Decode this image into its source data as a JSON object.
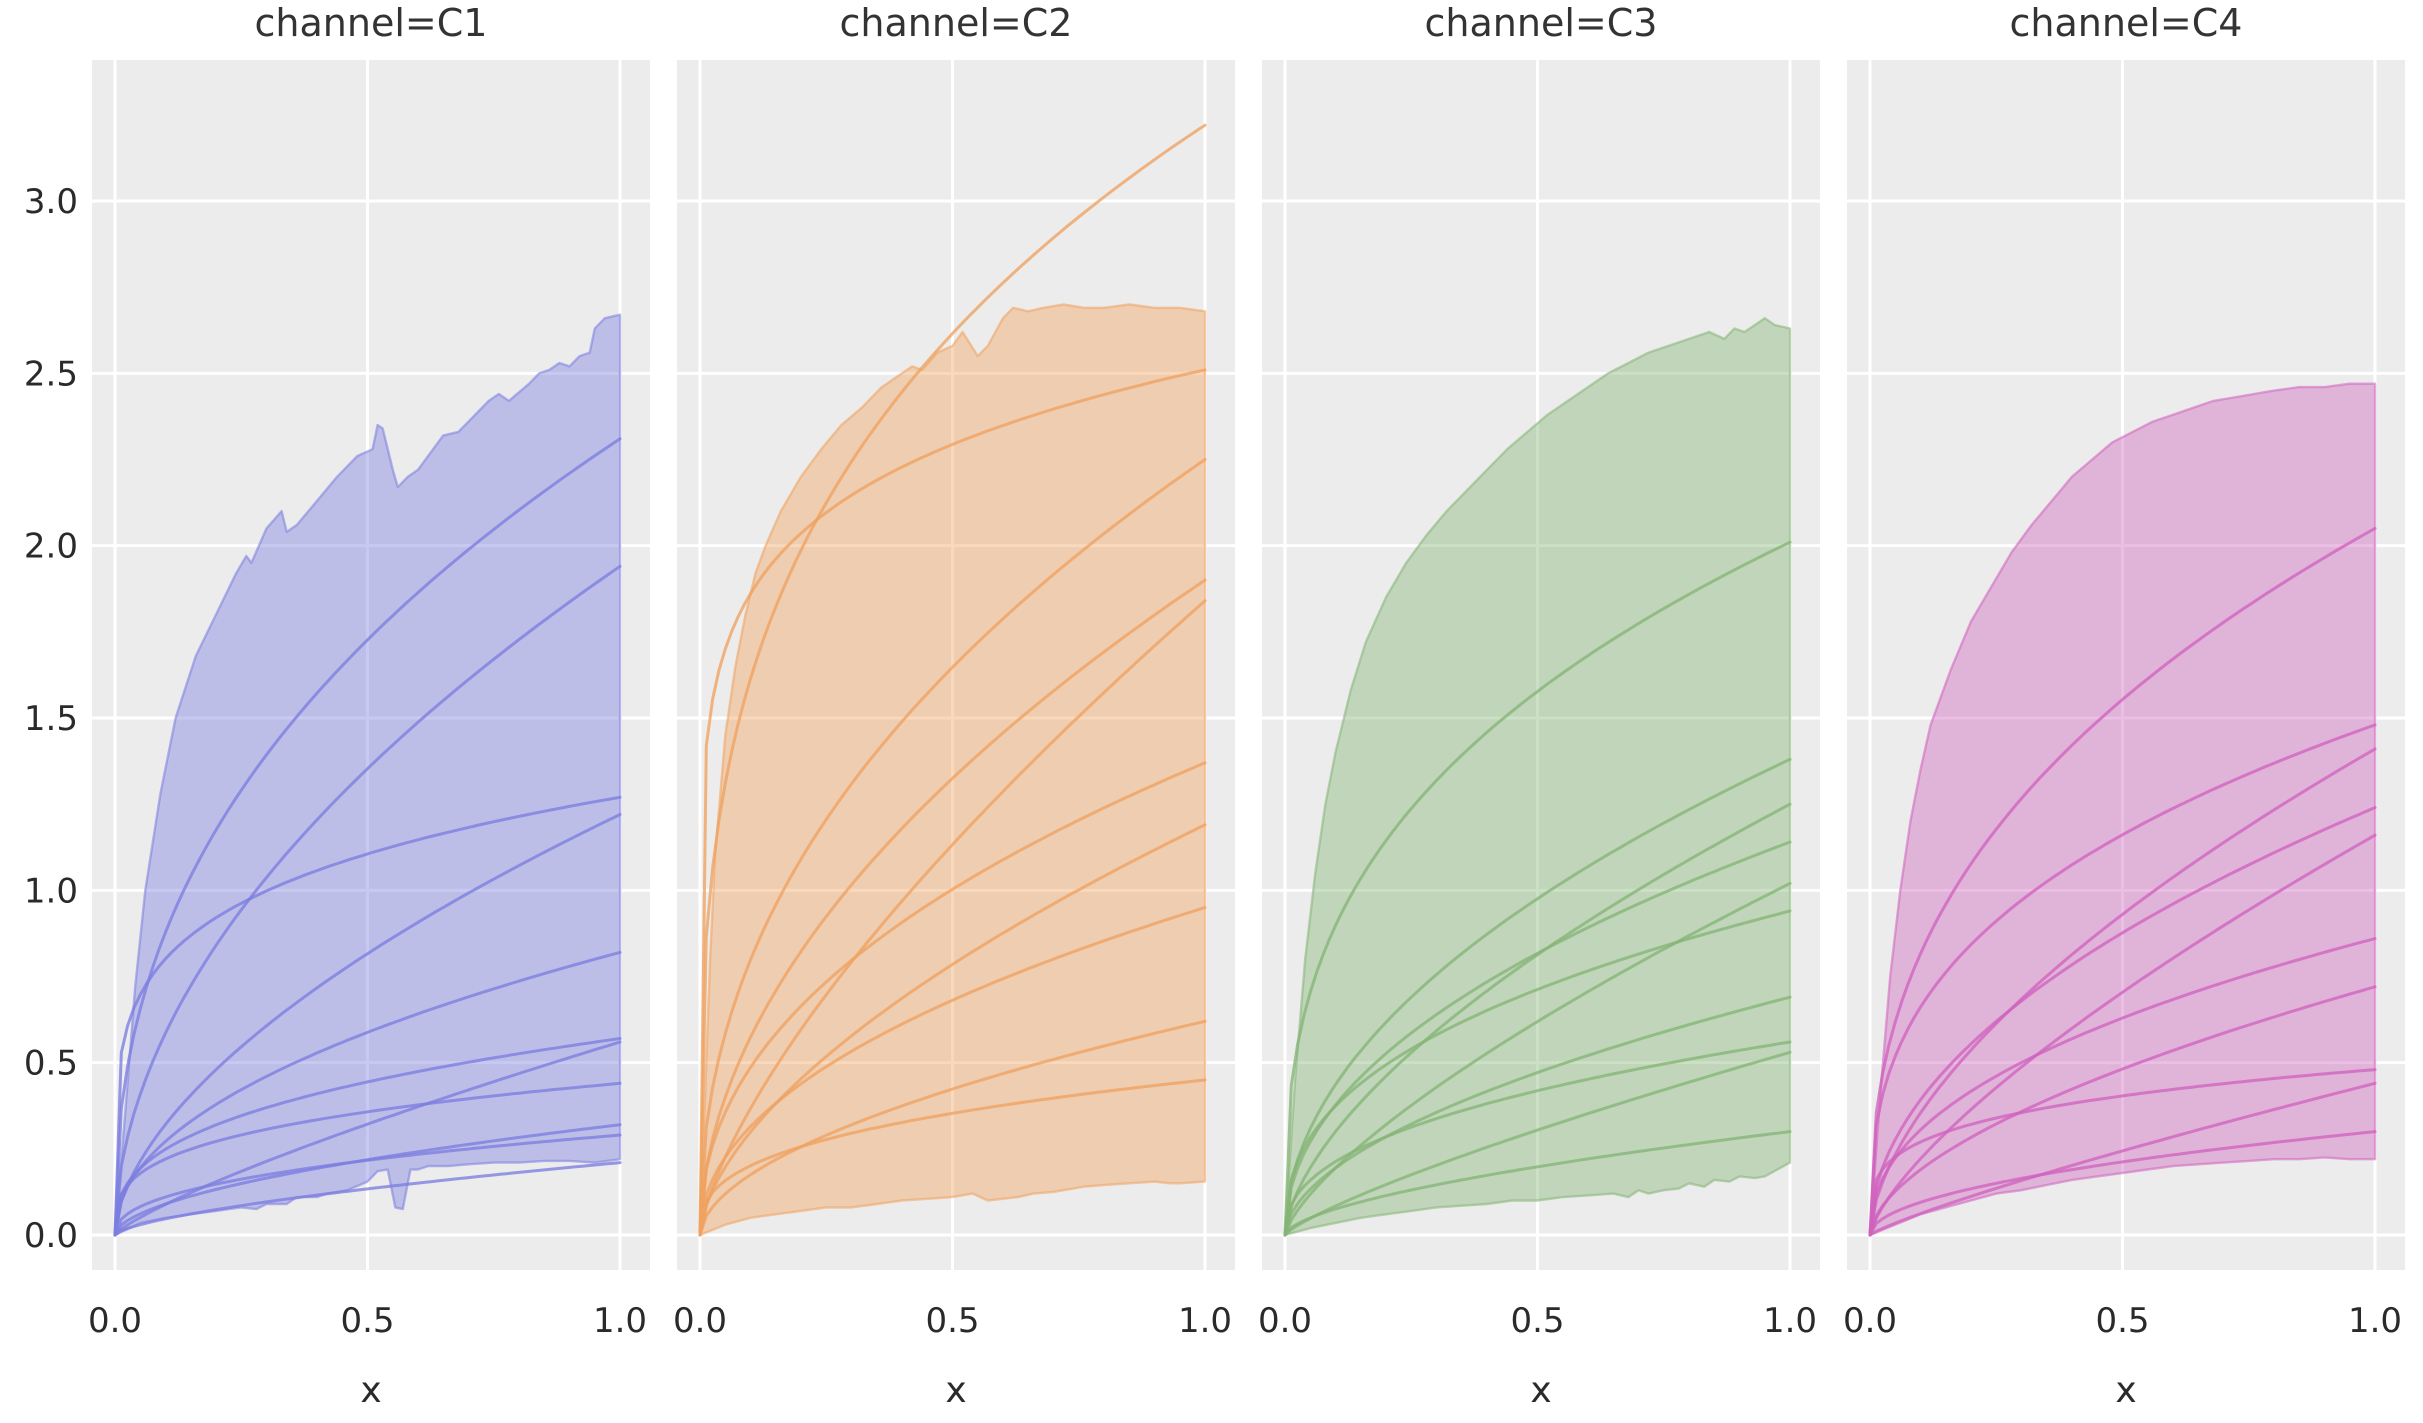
{
  "figure": {
    "background": "#ffffff",
    "axes_background": "#ececec",
    "grid_color": "#ffffff",
    "tick_color": "#2a2a2a",
    "title_color": "#333333",
    "x_axis_label": "x",
    "x_ticks": [
      "0.0",
      "0.5",
      "1.0"
    ],
    "x_tick_values": [
      0.0,
      0.5,
      1.0
    ],
    "y_ticks": [
      "0.0",
      "0.5",
      "1.0",
      "1.5",
      "2.0",
      "2.5",
      "3.0"
    ],
    "y_tick_values": [
      0.0,
      0.5,
      1.0,
      1.5,
      2.0,
      2.5,
      3.0
    ]
  },
  "chart_data": [
    {
      "type": "area",
      "title": "channel=C1",
      "xlabel": "x",
      "line_color": "#7b7ee0",
      "xlim": [
        -0.045,
        1.06
      ],
      "ylim": [
        -0.1,
        3.41
      ],
      "curve_model": "y = y_end * x^shape",
      "curves": [
        {
          "y_end": 2.31,
          "shape": 0.42
        },
        {
          "y_end": 1.94,
          "shape": 0.52
        },
        {
          "y_end": 1.27,
          "shape": 0.2
        },
        {
          "y_end": 1.22,
          "shape": 0.58
        },
        {
          "y_end": 0.82,
          "shape": 0.48
        },
        {
          "y_end": 0.57,
          "shape": 0.36
        },
        {
          "y_end": 0.56,
          "shape": 0.8
        },
        {
          "y_end": 0.44,
          "shape": 0.3
        },
        {
          "y_end": 0.32,
          "shape": 0.55
        },
        {
          "y_end": 0.29,
          "shape": 0.42
        },
        {
          "y_end": 0.21,
          "shape": 0.65
        }
      ],
      "band": {
        "top": [
          [
            0,
            0
          ],
          [
            0.02,
            0.35
          ],
          [
            0.04,
            0.72
          ],
          [
            0.06,
            1.0
          ],
          [
            0.09,
            1.28
          ],
          [
            0.12,
            1.5
          ],
          [
            0.16,
            1.68
          ],
          [
            0.2,
            1.8
          ],
          [
            0.24,
            1.92
          ],
          [
            0.26,
            1.97
          ],
          [
            0.27,
            1.95
          ],
          [
            0.3,
            2.05
          ],
          [
            0.33,
            2.1
          ],
          [
            0.34,
            2.04
          ],
          [
            0.36,
            2.06
          ],
          [
            0.4,
            2.13
          ],
          [
            0.44,
            2.2
          ],
          [
            0.48,
            2.26
          ],
          [
            0.51,
            2.28
          ],
          [
            0.52,
            2.35
          ],
          [
            0.53,
            2.34
          ],
          [
            0.55,
            2.22
          ],
          [
            0.56,
            2.17
          ],
          [
            0.58,
            2.2
          ],
          [
            0.6,
            2.22
          ],
          [
            0.63,
            2.28
          ],
          [
            0.65,
            2.32
          ],
          [
            0.68,
            2.33
          ],
          [
            0.7,
            2.36
          ],
          [
            0.74,
            2.42
          ],
          [
            0.76,
            2.44
          ],
          [
            0.78,
            2.42
          ],
          [
            0.82,
            2.47
          ],
          [
            0.84,
            2.5
          ],
          [
            0.86,
            2.51
          ],
          [
            0.88,
            2.53
          ],
          [
            0.9,
            2.52
          ],
          [
            0.92,
            2.55
          ],
          [
            0.94,
            2.56
          ],
          [
            0.95,
            2.63
          ],
          [
            0.97,
            2.66
          ],
          [
            1.0,
            2.67
          ]
        ],
        "bottom": [
          [
            0,
            0
          ],
          [
            0.05,
            0.035
          ],
          [
            0.1,
            0.05
          ],
          [
            0.15,
            0.06
          ],
          [
            0.2,
            0.07
          ],
          [
            0.25,
            0.08
          ],
          [
            0.28,
            0.075
          ],
          [
            0.3,
            0.09
          ],
          [
            0.34,
            0.09
          ],
          [
            0.36,
            0.11
          ],
          [
            0.4,
            0.11
          ],
          [
            0.42,
            0.12
          ],
          [
            0.44,
            0.125
          ],
          [
            0.46,
            0.13
          ],
          [
            0.5,
            0.155
          ],
          [
            0.52,
            0.185
          ],
          [
            0.54,
            0.19
          ],
          [
            0.555,
            0.08
          ],
          [
            0.57,
            0.075
          ],
          [
            0.585,
            0.19
          ],
          [
            0.6,
            0.19
          ],
          [
            0.62,
            0.2
          ],
          [
            0.66,
            0.2
          ],
          [
            0.7,
            0.205
          ],
          [
            0.75,
            0.21
          ],
          [
            0.8,
            0.21
          ],
          [
            0.85,
            0.215
          ],
          [
            0.9,
            0.215
          ],
          [
            0.95,
            0.21
          ],
          [
            1.0,
            0.22
          ]
        ]
      }
    },
    {
      "type": "area",
      "title": "channel=C2",
      "xlabel": "x",
      "line_color": "#f0a25f",
      "xlim": [
        -0.045,
        1.06
      ],
      "ylim": [
        -0.1,
        3.41
      ],
      "curve_model": "y = y_end * x^shape",
      "curves": [
        {
          "y_end": 3.22,
          "shape": 0.3
        },
        {
          "y_end": 2.51,
          "shape": 0.13
        },
        {
          "y_end": 2.25,
          "shape": 0.45
        },
        {
          "y_end": 1.9,
          "shape": 0.52
        },
        {
          "y_end": 1.84,
          "shape": 0.7
        },
        {
          "y_end": 1.37,
          "shape": 0.45
        },
        {
          "y_end": 1.19,
          "shape": 0.6
        },
        {
          "y_end": 0.95,
          "shape": 0.48
        },
        {
          "y_end": 0.62,
          "shape": 0.55
        },
        {
          "y_end": 0.45,
          "shape": 0.35
        }
      ],
      "band": {
        "top": [
          [
            0,
            0
          ],
          [
            0.01,
            0.4
          ],
          [
            0.02,
            0.8
          ],
          [
            0.03,
            1.1
          ],
          [
            0.05,
            1.45
          ],
          [
            0.07,
            1.65
          ],
          [
            0.09,
            1.8
          ],
          [
            0.11,
            1.92
          ],
          [
            0.13,
            2.0
          ],
          [
            0.16,
            2.1
          ],
          [
            0.2,
            2.2
          ],
          [
            0.24,
            2.28
          ],
          [
            0.28,
            2.35
          ],
          [
            0.32,
            2.4
          ],
          [
            0.36,
            2.46
          ],
          [
            0.4,
            2.5
          ],
          [
            0.42,
            2.52
          ],
          [
            0.44,
            2.51
          ],
          [
            0.47,
            2.56
          ],
          [
            0.5,
            2.58
          ],
          [
            0.52,
            2.62
          ],
          [
            0.55,
            2.55
          ],
          [
            0.57,
            2.58
          ],
          [
            0.6,
            2.66
          ],
          [
            0.62,
            2.69
          ],
          [
            0.65,
            2.68
          ],
          [
            0.68,
            2.69
          ],
          [
            0.72,
            2.7
          ],
          [
            0.76,
            2.69
          ],
          [
            0.8,
            2.69
          ],
          [
            0.85,
            2.7
          ],
          [
            0.9,
            2.69
          ],
          [
            0.95,
            2.69
          ],
          [
            1.0,
            2.68
          ]
        ],
        "bottom": [
          [
            0,
            0
          ],
          [
            0.05,
            0.03
          ],
          [
            0.1,
            0.05
          ],
          [
            0.15,
            0.06
          ],
          [
            0.2,
            0.07
          ],
          [
            0.25,
            0.08
          ],
          [
            0.3,
            0.08
          ],
          [
            0.35,
            0.09
          ],
          [
            0.4,
            0.1
          ],
          [
            0.45,
            0.105
          ],
          [
            0.5,
            0.11
          ],
          [
            0.54,
            0.12
          ],
          [
            0.57,
            0.1
          ],
          [
            0.6,
            0.105
          ],
          [
            0.63,
            0.11
          ],
          [
            0.66,
            0.12
          ],
          [
            0.7,
            0.125
          ],
          [
            0.72,
            0.13
          ],
          [
            0.74,
            0.135
          ],
          [
            0.76,
            0.14
          ],
          [
            0.8,
            0.145
          ],
          [
            0.85,
            0.15
          ],
          [
            0.9,
            0.155
          ],
          [
            0.93,
            0.15
          ],
          [
            0.95,
            0.15
          ],
          [
            1.0,
            0.155
          ]
        ]
      }
    },
    {
      "type": "area",
      "title": "channel=C3",
      "xlabel": "x",
      "line_color": "#85b576",
      "xlim": [
        -0.045,
        1.06
      ],
      "ylim": [
        -0.1,
        3.41
      ],
      "curve_model": "y = y_end * x^shape",
      "curves": [
        {
          "y_end": 2.01,
          "shape": 0.35
        },
        {
          "y_end": 1.38,
          "shape": 0.5
        },
        {
          "y_end": 1.25,
          "shape": 0.62
        },
        {
          "y_end": 1.14,
          "shape": 0.48
        },
        {
          "y_end": 1.02,
          "shape": 0.72
        },
        {
          "y_end": 0.94,
          "shape": 0.4
        },
        {
          "y_end": 0.69,
          "shape": 0.55
        },
        {
          "y_end": 0.56,
          "shape": 0.42
        },
        {
          "y_end": 0.53,
          "shape": 0.8
        },
        {
          "y_end": 0.3,
          "shape": 0.6
        }
      ],
      "band": {
        "top": [
          [
            0,
            0
          ],
          [
            0.02,
            0.45
          ],
          [
            0.04,
            0.8
          ],
          [
            0.06,
            1.05
          ],
          [
            0.08,
            1.25
          ],
          [
            0.1,
            1.4
          ],
          [
            0.13,
            1.58
          ],
          [
            0.16,
            1.72
          ],
          [
            0.2,
            1.85
          ],
          [
            0.24,
            1.95
          ],
          [
            0.28,
            2.03
          ],
          [
            0.32,
            2.1
          ],
          [
            0.36,
            2.16
          ],
          [
            0.4,
            2.22
          ],
          [
            0.44,
            2.28
          ],
          [
            0.48,
            2.33
          ],
          [
            0.52,
            2.38
          ],
          [
            0.56,
            2.42
          ],
          [
            0.6,
            2.46
          ],
          [
            0.64,
            2.5
          ],
          [
            0.68,
            2.53
          ],
          [
            0.72,
            2.56
          ],
          [
            0.76,
            2.58
          ],
          [
            0.8,
            2.6
          ],
          [
            0.84,
            2.62
          ],
          [
            0.87,
            2.6
          ],
          [
            0.89,
            2.63
          ],
          [
            0.91,
            2.62
          ],
          [
            0.93,
            2.64
          ],
          [
            0.95,
            2.66
          ],
          [
            0.97,
            2.64
          ],
          [
            1.0,
            2.63
          ]
        ],
        "bottom": [
          [
            0,
            0
          ],
          [
            0.05,
            0.02
          ],
          [
            0.1,
            0.035
          ],
          [
            0.15,
            0.05
          ],
          [
            0.2,
            0.06
          ],
          [
            0.25,
            0.07
          ],
          [
            0.3,
            0.08
          ],
          [
            0.35,
            0.085
          ],
          [
            0.4,
            0.09
          ],
          [
            0.45,
            0.1
          ],
          [
            0.5,
            0.1
          ],
          [
            0.55,
            0.11
          ],
          [
            0.6,
            0.115
          ],
          [
            0.65,
            0.12
          ],
          [
            0.68,
            0.11
          ],
          [
            0.7,
            0.13
          ],
          [
            0.72,
            0.12
          ],
          [
            0.75,
            0.13
          ],
          [
            0.78,
            0.135
          ],
          [
            0.8,
            0.15
          ],
          [
            0.83,
            0.14
          ],
          [
            0.85,
            0.16
          ],
          [
            0.88,
            0.155
          ],
          [
            0.9,
            0.17
          ],
          [
            0.93,
            0.165
          ],
          [
            0.95,
            0.17
          ],
          [
            1.0,
            0.21
          ]
        ]
      }
    },
    {
      "type": "area",
      "title": "channel=C4",
      "xlabel": "x",
      "line_color": "#cf63be",
      "xlim": [
        -0.045,
        1.06
      ],
      "ylim": [
        -0.1,
        3.41
      ],
      "curve_model": "y = y_end * x^shape",
      "curves": [
        {
          "y_end": 2.05,
          "shape": 0.4
        },
        {
          "y_end": 1.48,
          "shape": 0.35
        },
        {
          "y_end": 1.41,
          "shape": 0.6
        },
        {
          "y_end": 1.24,
          "shape": 0.5
        },
        {
          "y_end": 1.16,
          "shape": 0.72
        },
        {
          "y_end": 0.86,
          "shape": 0.45
        },
        {
          "y_end": 0.72,
          "shape": 0.58
        },
        {
          "y_end": 0.48,
          "shape": 0.25
        },
        {
          "y_end": 0.44,
          "shape": 0.85
        },
        {
          "y_end": 0.3,
          "shape": 0.5
        }
      ],
      "band": {
        "top": [
          [
            0,
            0
          ],
          [
            0.02,
            0.4
          ],
          [
            0.04,
            0.75
          ],
          [
            0.06,
            1.0
          ],
          [
            0.08,
            1.2
          ],
          [
            0.1,
            1.35
          ],
          [
            0.12,
            1.48
          ],
          [
            0.14,
            1.56
          ],
          [
            0.16,
            1.64
          ],
          [
            0.2,
            1.78
          ],
          [
            0.24,
            1.88
          ],
          [
            0.28,
            1.98
          ],
          [
            0.32,
            2.06
          ],
          [
            0.36,
            2.13
          ],
          [
            0.4,
            2.2
          ],
          [
            0.44,
            2.25
          ],
          [
            0.48,
            2.3
          ],
          [
            0.52,
            2.33
          ],
          [
            0.56,
            2.36
          ],
          [
            0.6,
            2.38
          ],
          [
            0.64,
            2.4
          ],
          [
            0.68,
            2.42
          ],
          [
            0.72,
            2.43
          ],
          [
            0.76,
            2.44
          ],
          [
            0.8,
            2.45
          ],
          [
            0.85,
            2.46
          ],
          [
            0.9,
            2.46
          ],
          [
            0.95,
            2.47
          ],
          [
            1.0,
            2.47
          ]
        ],
        "bottom": [
          [
            0,
            0
          ],
          [
            0.05,
            0.03
          ],
          [
            0.1,
            0.06
          ],
          [
            0.15,
            0.08
          ],
          [
            0.2,
            0.1
          ],
          [
            0.25,
            0.12
          ],
          [
            0.3,
            0.13
          ],
          [
            0.35,
            0.145
          ],
          [
            0.4,
            0.16
          ],
          [
            0.45,
            0.17
          ],
          [
            0.5,
            0.18
          ],
          [
            0.55,
            0.19
          ],
          [
            0.6,
            0.2
          ],
          [
            0.65,
            0.205
          ],
          [
            0.7,
            0.21
          ],
          [
            0.75,
            0.215
          ],
          [
            0.8,
            0.22
          ],
          [
            0.85,
            0.22
          ],
          [
            0.9,
            0.225
          ],
          [
            0.95,
            0.22
          ],
          [
            1.0,
            0.22
          ]
        ]
      }
    }
  ]
}
